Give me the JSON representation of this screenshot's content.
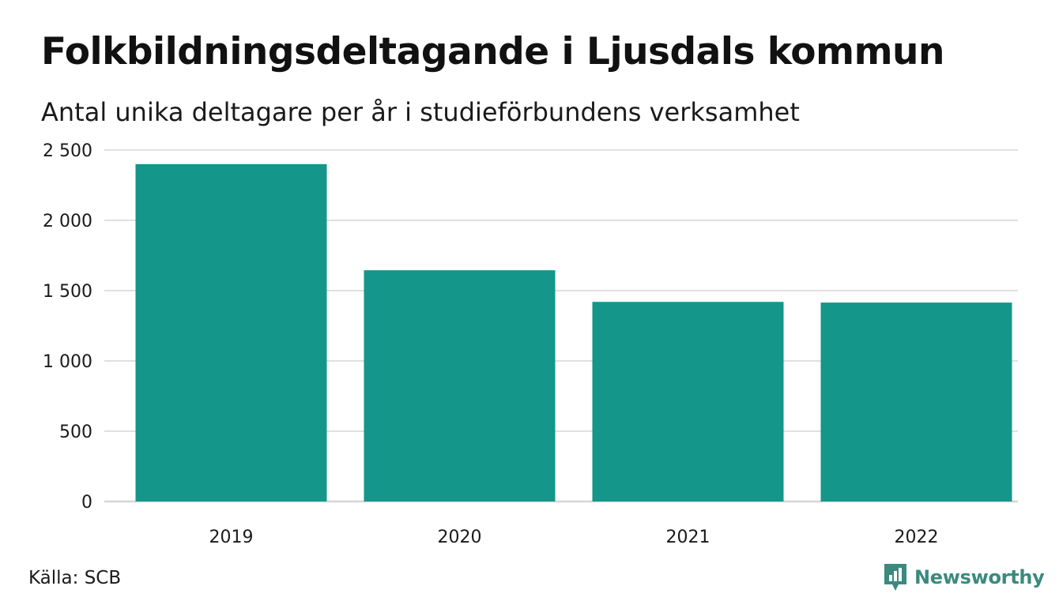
{
  "title": "Folkbildningsdeltagande i Ljusdals kommun",
  "subtitle": "Antal unika deltagare per år i studieförbundens verksamhet",
  "source": "Källa: SCB",
  "brand": {
    "name": "Newsworthy",
    "icon": "newsworthy-logo-icon",
    "color": "#3a8a7e"
  },
  "chart_data": {
    "type": "bar",
    "categories": [
      "2019",
      "2020",
      "2021",
      "2022"
    ],
    "values": [
      2400,
      1645,
      1420,
      1415
    ],
    "ylim": [
      0,
      2500
    ],
    "yticks": [
      0,
      500,
      1000,
      1500,
      2000,
      2500
    ],
    "ytick_labels": [
      "0",
      "500",
      "1 000",
      "1 500",
      "2 000",
      "2 500"
    ],
    "xlabel": "",
    "ylabel": "",
    "grid": true,
    "bar_color": "#14968a",
    "grid_color": "#e0e0e0"
  }
}
